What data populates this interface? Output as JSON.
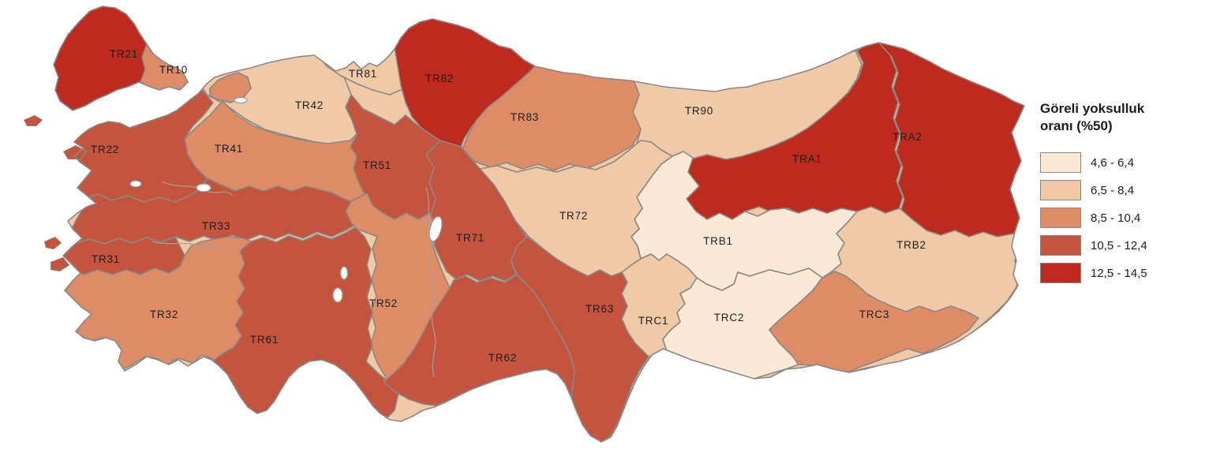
{
  "figure": {
    "background": "#ffffff"
  },
  "legend": {
    "title_line1": "Göreli yoksulluk",
    "title_line2": "oranı (%50)",
    "items": [
      {
        "label": "4,6 - 6,4",
        "color": "#fbe9d5"
      },
      {
        "label": "6,5 - 8,4",
        "color": "#f0c9a6"
      },
      {
        "label": "8,5 - 10,4",
        "color": "#de8c66"
      },
      {
        "label": "10,5 - 12,4",
        "color": "#c5543e"
      },
      {
        "label": "12,5 - 14,5",
        "color": "#bf2a1f"
      }
    ]
  },
  "map": {
    "type": "choropleth",
    "title": "Göreli yoksulluk oranı (%50)",
    "border_color": "#8a8886",
    "sea_color": "#ffffff",
    "label_color": "#1e1e1e",
    "regions": [
      {
        "code": "TR21",
        "range": "12,5 - 14,5",
        "class": 4
      },
      {
        "code": "TR10",
        "range": "8,5 - 10,4",
        "class": 2
      },
      {
        "code": "TR22",
        "range": "10,5 - 12,4",
        "class": 3
      },
      {
        "code": "TR31",
        "range": "10,5 - 12,4",
        "class": 3
      },
      {
        "code": "TR32",
        "range": "8,5 - 10,4",
        "class": 2
      },
      {
        "code": "TR33",
        "range": "10,5 - 12,4",
        "class": 3
      },
      {
        "code": "TR41",
        "range": "8,5 - 10,4",
        "class": 2
      },
      {
        "code": "TR42",
        "range": "6,5 - 8,4",
        "class": 1
      },
      {
        "code": "TR51",
        "range": "10,5 - 12,4",
        "class": 3
      },
      {
        "code": "TR52",
        "range": "8,5 - 10,4",
        "class": 2
      },
      {
        "code": "TR61",
        "range": "10,5 - 12,4",
        "class": 3
      },
      {
        "code": "TR62",
        "range": "10,5 - 12,4",
        "class": 3
      },
      {
        "code": "TR63",
        "range": "10,5 - 12,4",
        "class": 3
      },
      {
        "code": "TR71",
        "range": "10,5 - 12,4",
        "class": 3
      },
      {
        "code": "TR72",
        "range": "6,5 - 8,4",
        "class": 1
      },
      {
        "code": "TR81",
        "range": "6,5 - 8,4",
        "class": 1
      },
      {
        "code": "TR82",
        "range": "12,5 - 14,5",
        "class": 4
      },
      {
        "code": "TR83",
        "range": "8,5 - 10,4",
        "class": 2
      },
      {
        "code": "TR90",
        "range": "6,5 - 8,4",
        "class": 1
      },
      {
        "code": "TRA1",
        "range": "12,5 - 14,5",
        "class": 4
      },
      {
        "code": "TRA2",
        "range": "12,5 - 14,5",
        "class": 4
      },
      {
        "code": "TRB1",
        "range": "4,6 - 6,4",
        "class": 0
      },
      {
        "code": "TRB2",
        "range": "6,5 - 8,4",
        "class": 1
      },
      {
        "code": "TRC1",
        "range": "6,5 - 8,4",
        "class": 1
      },
      {
        "code": "TRC2",
        "range": "4,6 - 6,4",
        "class": 0
      },
      {
        "code": "TRC3",
        "range": "8,5 - 10,4",
        "class": 2
      }
    ]
  }
}
